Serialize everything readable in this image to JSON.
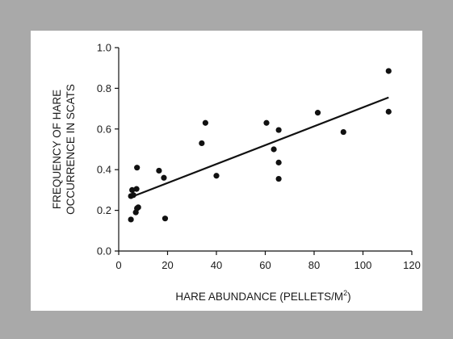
{
  "chart_data": {
    "type": "scatter",
    "title": "",
    "xlabel": "HARE ABUNDANCE (PELLETS/M",
    "xlabel_sup": "2",
    "xlabel_suffix": ")",
    "ylabel_line1": "FREQUENCY OF HARE",
    "ylabel_line2": "OCCURRENCE IN SCATS",
    "xlim": [
      0,
      120
    ],
    "ylim": [
      0,
      1.0
    ],
    "xticks": [
      0,
      20,
      40,
      60,
      80,
      100,
      120
    ],
    "yticks": [
      0.0,
      0.2,
      0.4,
      0.6,
      0.8,
      1.0
    ],
    "ytick_labels": [
      "0.0",
      "0.2",
      "0.4",
      "0.6",
      "0.8",
      "1.0"
    ],
    "grid": false,
    "point_color": "#111111",
    "points": [
      {
        "x": 5,
        "y": 0.155
      },
      {
        "x": 5,
        "y": 0.27
      },
      {
        "x": 5.5,
        "y": 0.3
      },
      {
        "x": 6,
        "y": 0.275
      },
      {
        "x": 7,
        "y": 0.19
      },
      {
        "x": 7.3,
        "y": 0.305
      },
      {
        "x": 7.5,
        "y": 0.21
      },
      {
        "x": 7.5,
        "y": 0.41
      },
      {
        "x": 8,
        "y": 0.215
      },
      {
        "x": 16.5,
        "y": 0.395
      },
      {
        "x": 18.5,
        "y": 0.36
      },
      {
        "x": 19,
        "y": 0.16
      },
      {
        "x": 34,
        "y": 0.53
      },
      {
        "x": 35.5,
        "y": 0.63
      },
      {
        "x": 40,
        "y": 0.37
      },
      {
        "x": 60.5,
        "y": 0.63
      },
      {
        "x": 63.5,
        "y": 0.5
      },
      {
        "x": 65.5,
        "y": 0.595
      },
      {
        "x": 65.5,
        "y": 0.435
      },
      {
        "x": 65.5,
        "y": 0.355
      },
      {
        "x": 81.5,
        "y": 0.68
      },
      {
        "x": 92,
        "y": 0.585
      },
      {
        "x": 110.5,
        "y": 0.885
      },
      {
        "x": 110.5,
        "y": 0.685
      }
    ],
    "trendline": {
      "x1": 5,
      "y1": 0.265,
      "x2": 110.5,
      "y2": 0.755
    }
  }
}
